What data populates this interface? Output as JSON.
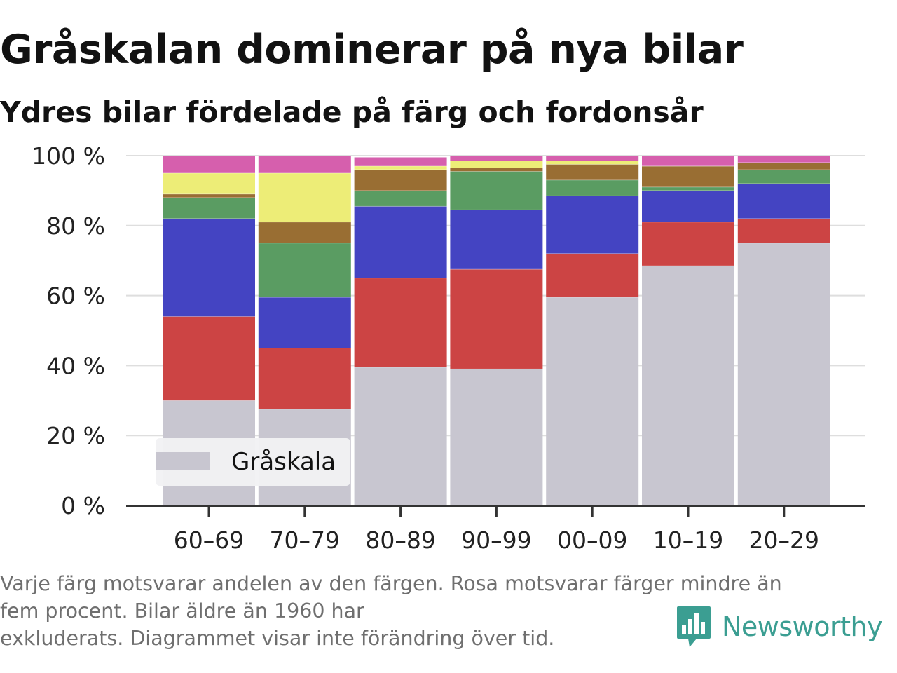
{
  "title": "Gråskalan dominerar på nya bilar",
  "subtitle": "Ydres bilar fördelade på färg och fordonsår",
  "note": {
    "line1": "Varje färg motsvarar andelen av den färgen. Rosa motsvarar färger mindre än",
    "line2": "fem procent. Bilar äldre än 1960 har",
    "line3": "exkluderats. Diagrammet visar inte förändring över tid."
  },
  "brand": {
    "name": "Newsworthy",
    "color": "#3b9e92",
    "icon": "newsworthy-logo-icon"
  },
  "legend": {
    "label": "Gråskala",
    "position": "bottom-left"
  },
  "chart_data": {
    "type": "bar",
    "stacked": true,
    "categories": [
      "60–69",
      "70–79",
      "80–89",
      "90–99",
      "00–09",
      "10–19",
      "20–29"
    ],
    "ylim": [
      0,
      100
    ],
    "yticks": [
      0,
      20,
      40,
      60,
      80,
      100
    ],
    "ytick_labels": [
      "0 %",
      "20 %",
      "40 %",
      "60 %",
      "80 %",
      "100 %"
    ],
    "grid": true,
    "series": [
      {
        "name": "Gråskala",
        "color": "#c8c6d0",
        "values": [
          30,
          27.5,
          39.5,
          39,
          59.5,
          68.5,
          75
        ]
      },
      {
        "color": "#cc4444",
        "values": [
          24,
          17.5,
          25.5,
          28.5,
          12.5,
          12.5,
          7
        ]
      },
      {
        "color": "#4444c2",
        "values": [
          28,
          14.5,
          20.5,
          17,
          16.5,
          9,
          10
        ]
      },
      {
        "color": "#5a9c62",
        "values": [
          6,
          15.5,
          4.5,
          11,
          4.5,
          1,
          4
        ]
      },
      {
        "color": "#996e33",
        "values": [
          1,
          6,
          6,
          1,
          4.5,
          6,
          2
        ]
      },
      {
        "color": "#eded77",
        "values": [
          6,
          14,
          1,
          2,
          1,
          0,
          0
        ]
      },
      {
        "color": "#d65fad",
        "values": [
          5,
          5,
          2.5,
          1.5,
          1.5,
          3,
          2
        ]
      }
    ]
  }
}
